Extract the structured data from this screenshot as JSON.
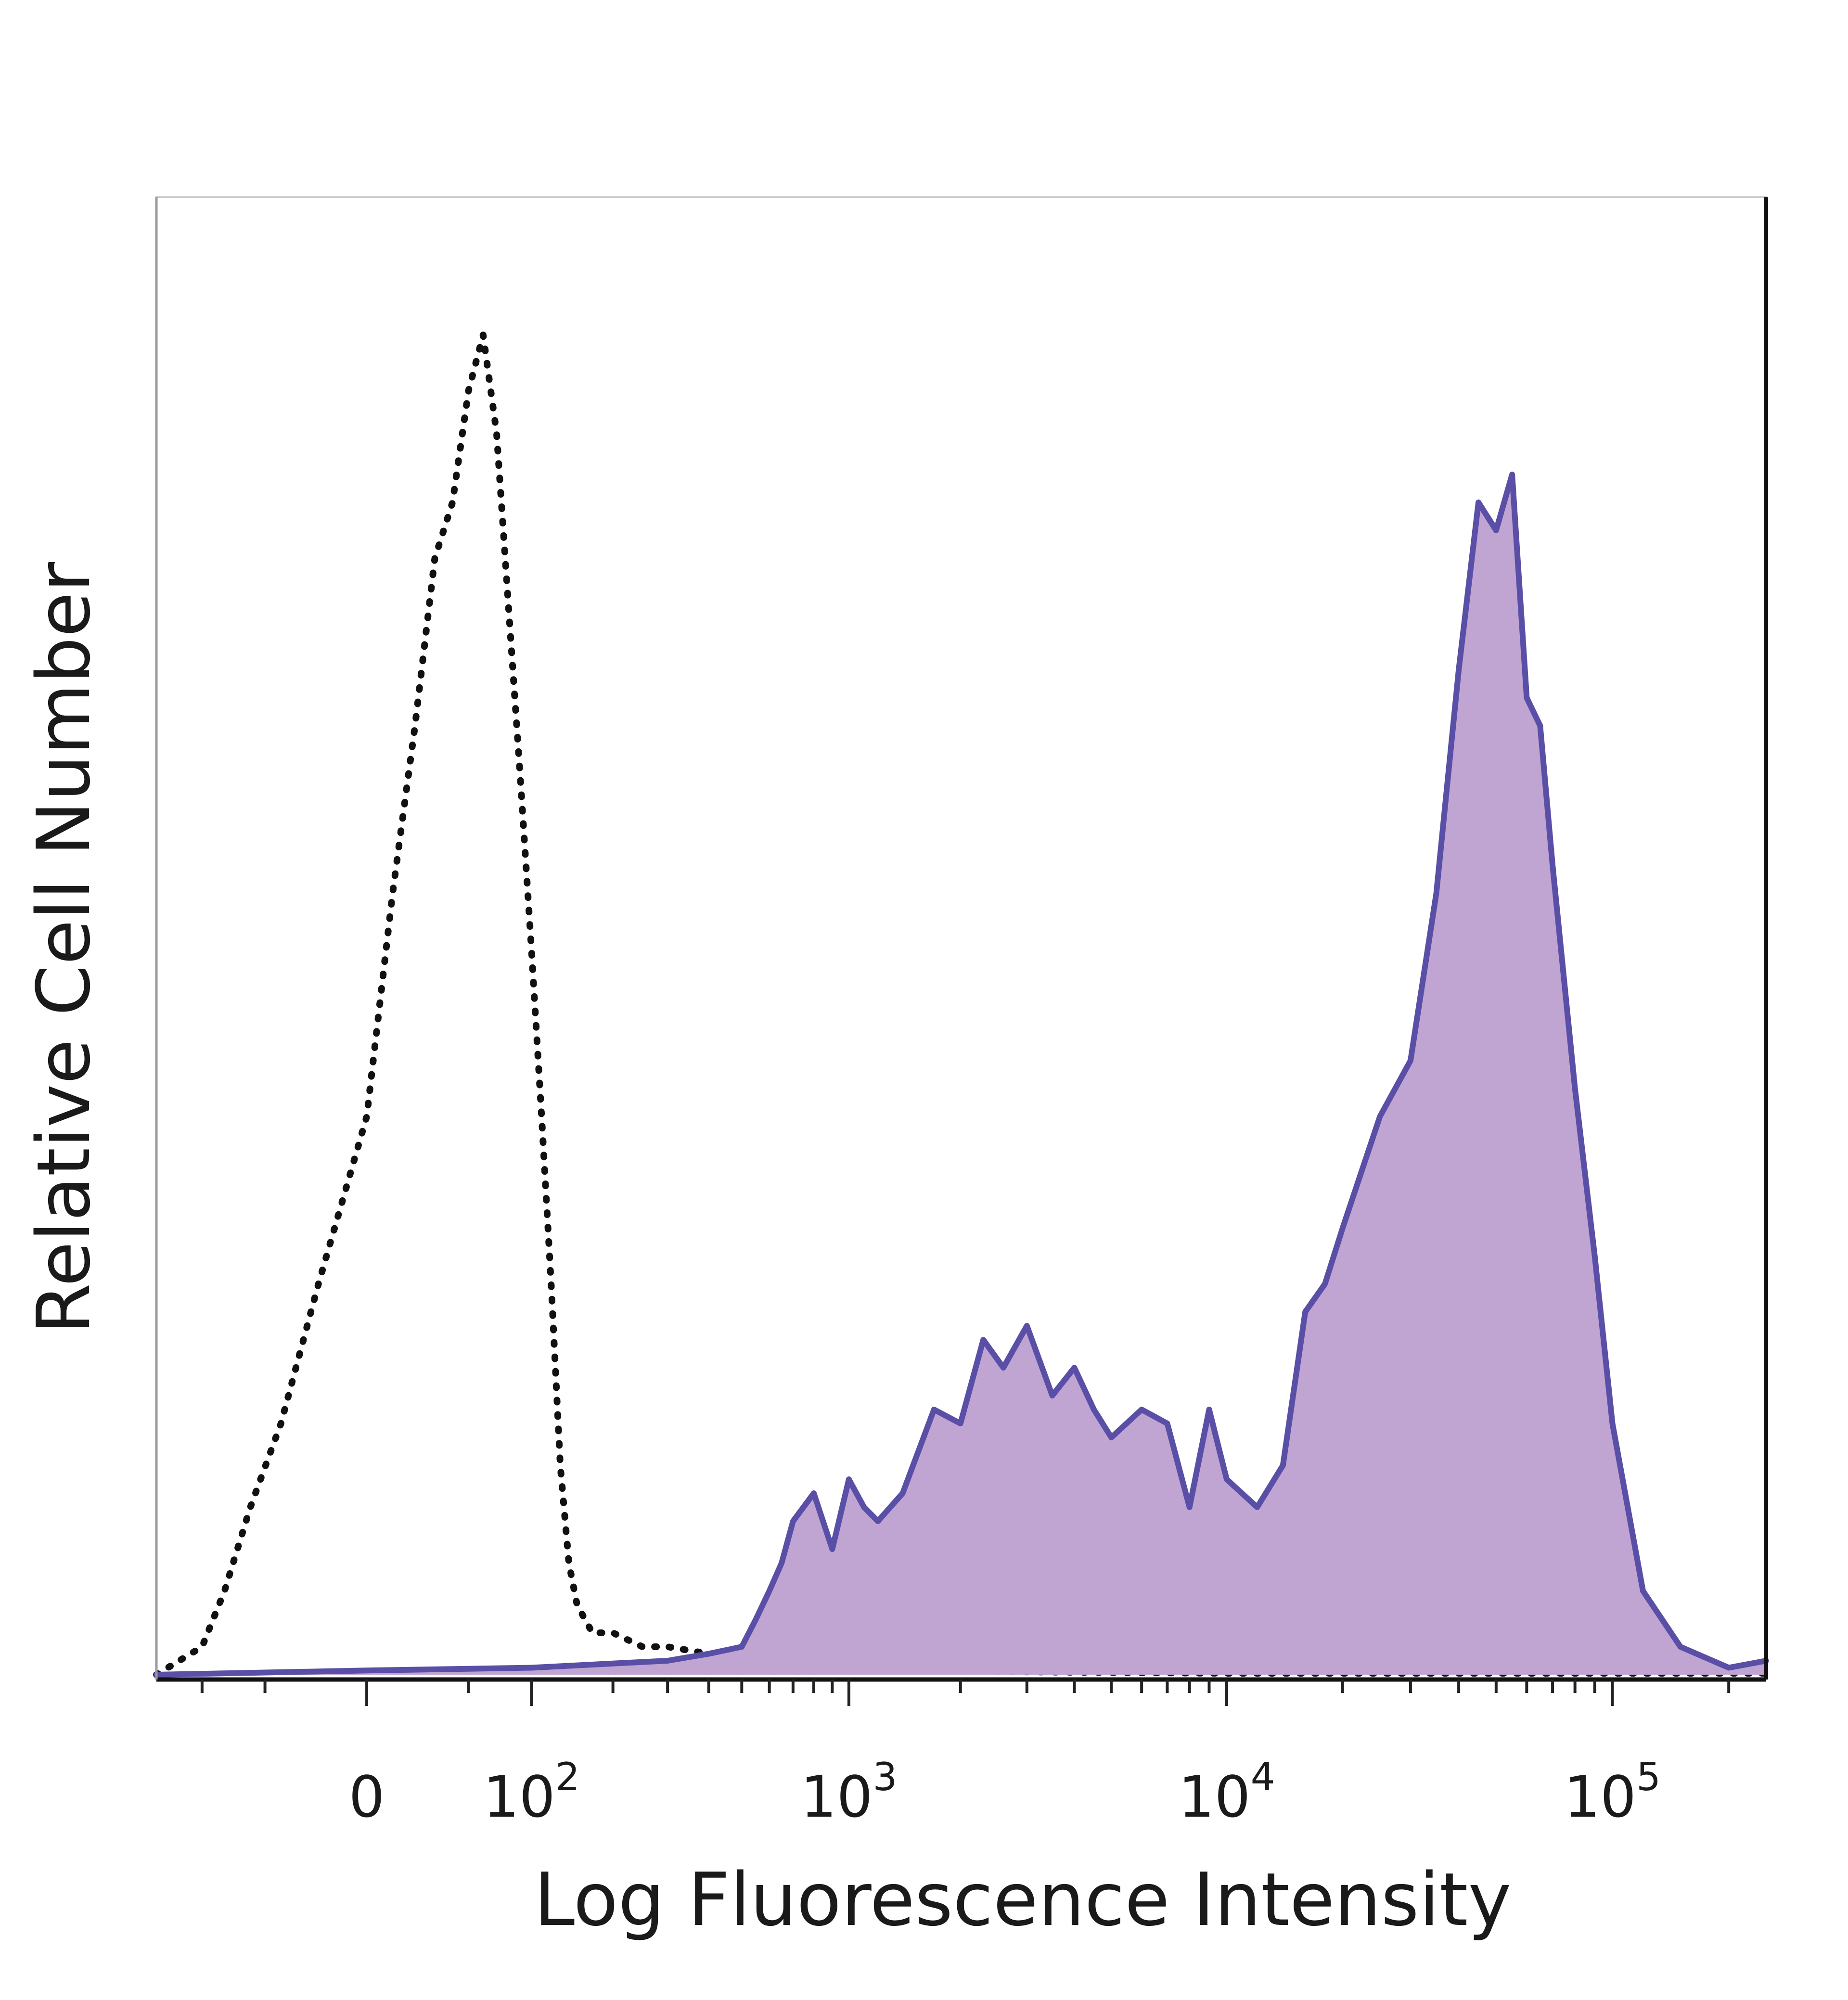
{
  "chart_data": {
    "type": "area",
    "title": "",
    "xlabel": "Log Fluorescence Intensity",
    "ylabel": "Relative Cell Number",
    "x_scale": "biexponential",
    "x_ticks": [
      {
        "value": 0,
        "label": "0",
        "exp": ""
      },
      {
        "value": 100,
        "label": "10",
        "exp": "2"
      },
      {
        "value": 1000,
        "label": "10",
        "exp": "3"
      },
      {
        "value": 10000,
        "label": "10",
        "exp": "4"
      },
      {
        "value": 100000,
        "label": "10",
        "exp": "5"
      }
    ],
    "xlim": [
      -150,
      250000
    ],
    "ylim": [
      0,
      100
    ],
    "grid": false,
    "legend": "none",
    "series": [
      {
        "style": "dotted",
        "color": "#111111",
        "fill": "none",
        "x": [
          -150,
          -100,
          -80,
          -60,
          -40,
          -20,
          0,
          10,
          20,
          30,
          40,
          50,
          60,
          70,
          80,
          90,
          100,
          110,
          120,
          130,
          140,
          150,
          170,
          200,
          250,
          300,
          400,
          500,
          600,
          700,
          800,
          1000,
          1500,
          3000,
          10000,
          50000,
          100000,
          250000
        ],
        "y": [
          0,
          2,
          6,
          12,
          18,
          28,
          40,
          56,
          68,
          80,
          84,
          92,
          96,
          89,
          76,
          64,
          52,
          40,
          28,
          15,
          8,
          5,
          3,
          3,
          2,
          2,
          1.5,
          1.5,
          2,
          1.5,
          1,
          0.5,
          0.3,
          0.2,
          0.1,
          0.1,
          0.1,
          0.1
        ]
      },
      {
        "style": "solid",
        "color": "#5a4fa6",
        "fill": "#c0a4d2",
        "x": [
          -150,
          0,
          100,
          200,
          300,
          400,
          500,
          550,
          600,
          650,
          700,
          800,
          900,
          1000,
          1100,
          1200,
          1400,
          1700,
          2000,
          2300,
          2600,
          3000,
          3500,
          4000,
          4500,
          5000,
          6000,
          7000,
          8000,
          9000,
          10000,
          12000,
          14000,
          16000,
          18000,
          20000,
          25000,
          30000,
          35000,
          40000,
          45000,
          50000,
          55000,
          60000,
          65000,
          70000,
          80000,
          90000,
          100000,
          120000,
          150000,
          200000,
          250000
        ],
        "y": [
          0,
          0.3,
          0.5,
          0.8,
          1,
          1.5,
          2,
          4,
          6,
          8,
          11,
          13,
          9,
          14,
          12,
          11,
          13,
          19,
          18,
          24,
          22,
          25,
          20,
          22,
          19,
          17,
          19,
          18,
          12,
          19,
          14,
          12,
          15,
          26,
          28,
          32,
          40,
          44,
          56,
          72,
          84,
          82,
          86,
          70,
          68,
          58,
          42,
          30,
          18,
          6,
          2,
          0.5,
          1
        ]
      }
    ]
  }
}
